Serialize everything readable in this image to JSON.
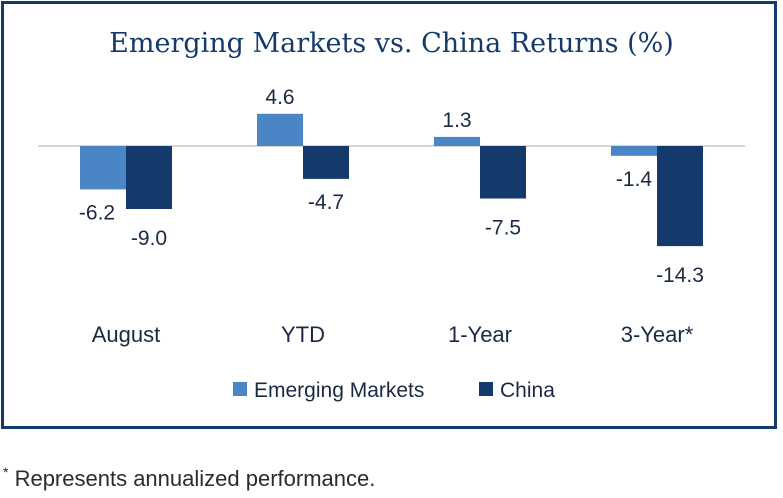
{
  "chart_data": {
    "type": "bar",
    "title": "Emerging Markets vs. China Returns (%)",
    "categories": [
      "August",
      "YTD",
      "1-Year",
      "3-Year*"
    ],
    "series": [
      {
        "name": "Emerging Markets",
        "color": "#4a86c5",
        "values": [
          -6.2,
          4.6,
          1.3,
          -1.4
        ]
      },
      {
        "name": "China",
        "color": "#133a6b",
        "values": [
          -9.0,
          -4.7,
          -7.5,
          -14.3
        ]
      }
    ],
    "value_labels": {
      "Emerging Markets": [
        "-6.2",
        "4.6",
        "1.3",
        "-1.4"
      ],
      "China": [
        "-9.0",
        "-4.7",
        "-7.5",
        "-14.3"
      ]
    },
    "xlabel": "",
    "ylabel": "",
    "legend_position": "bottom",
    "grid": false
  },
  "footnote": {
    "marker": "*",
    "text": "Represents annualized performance."
  }
}
